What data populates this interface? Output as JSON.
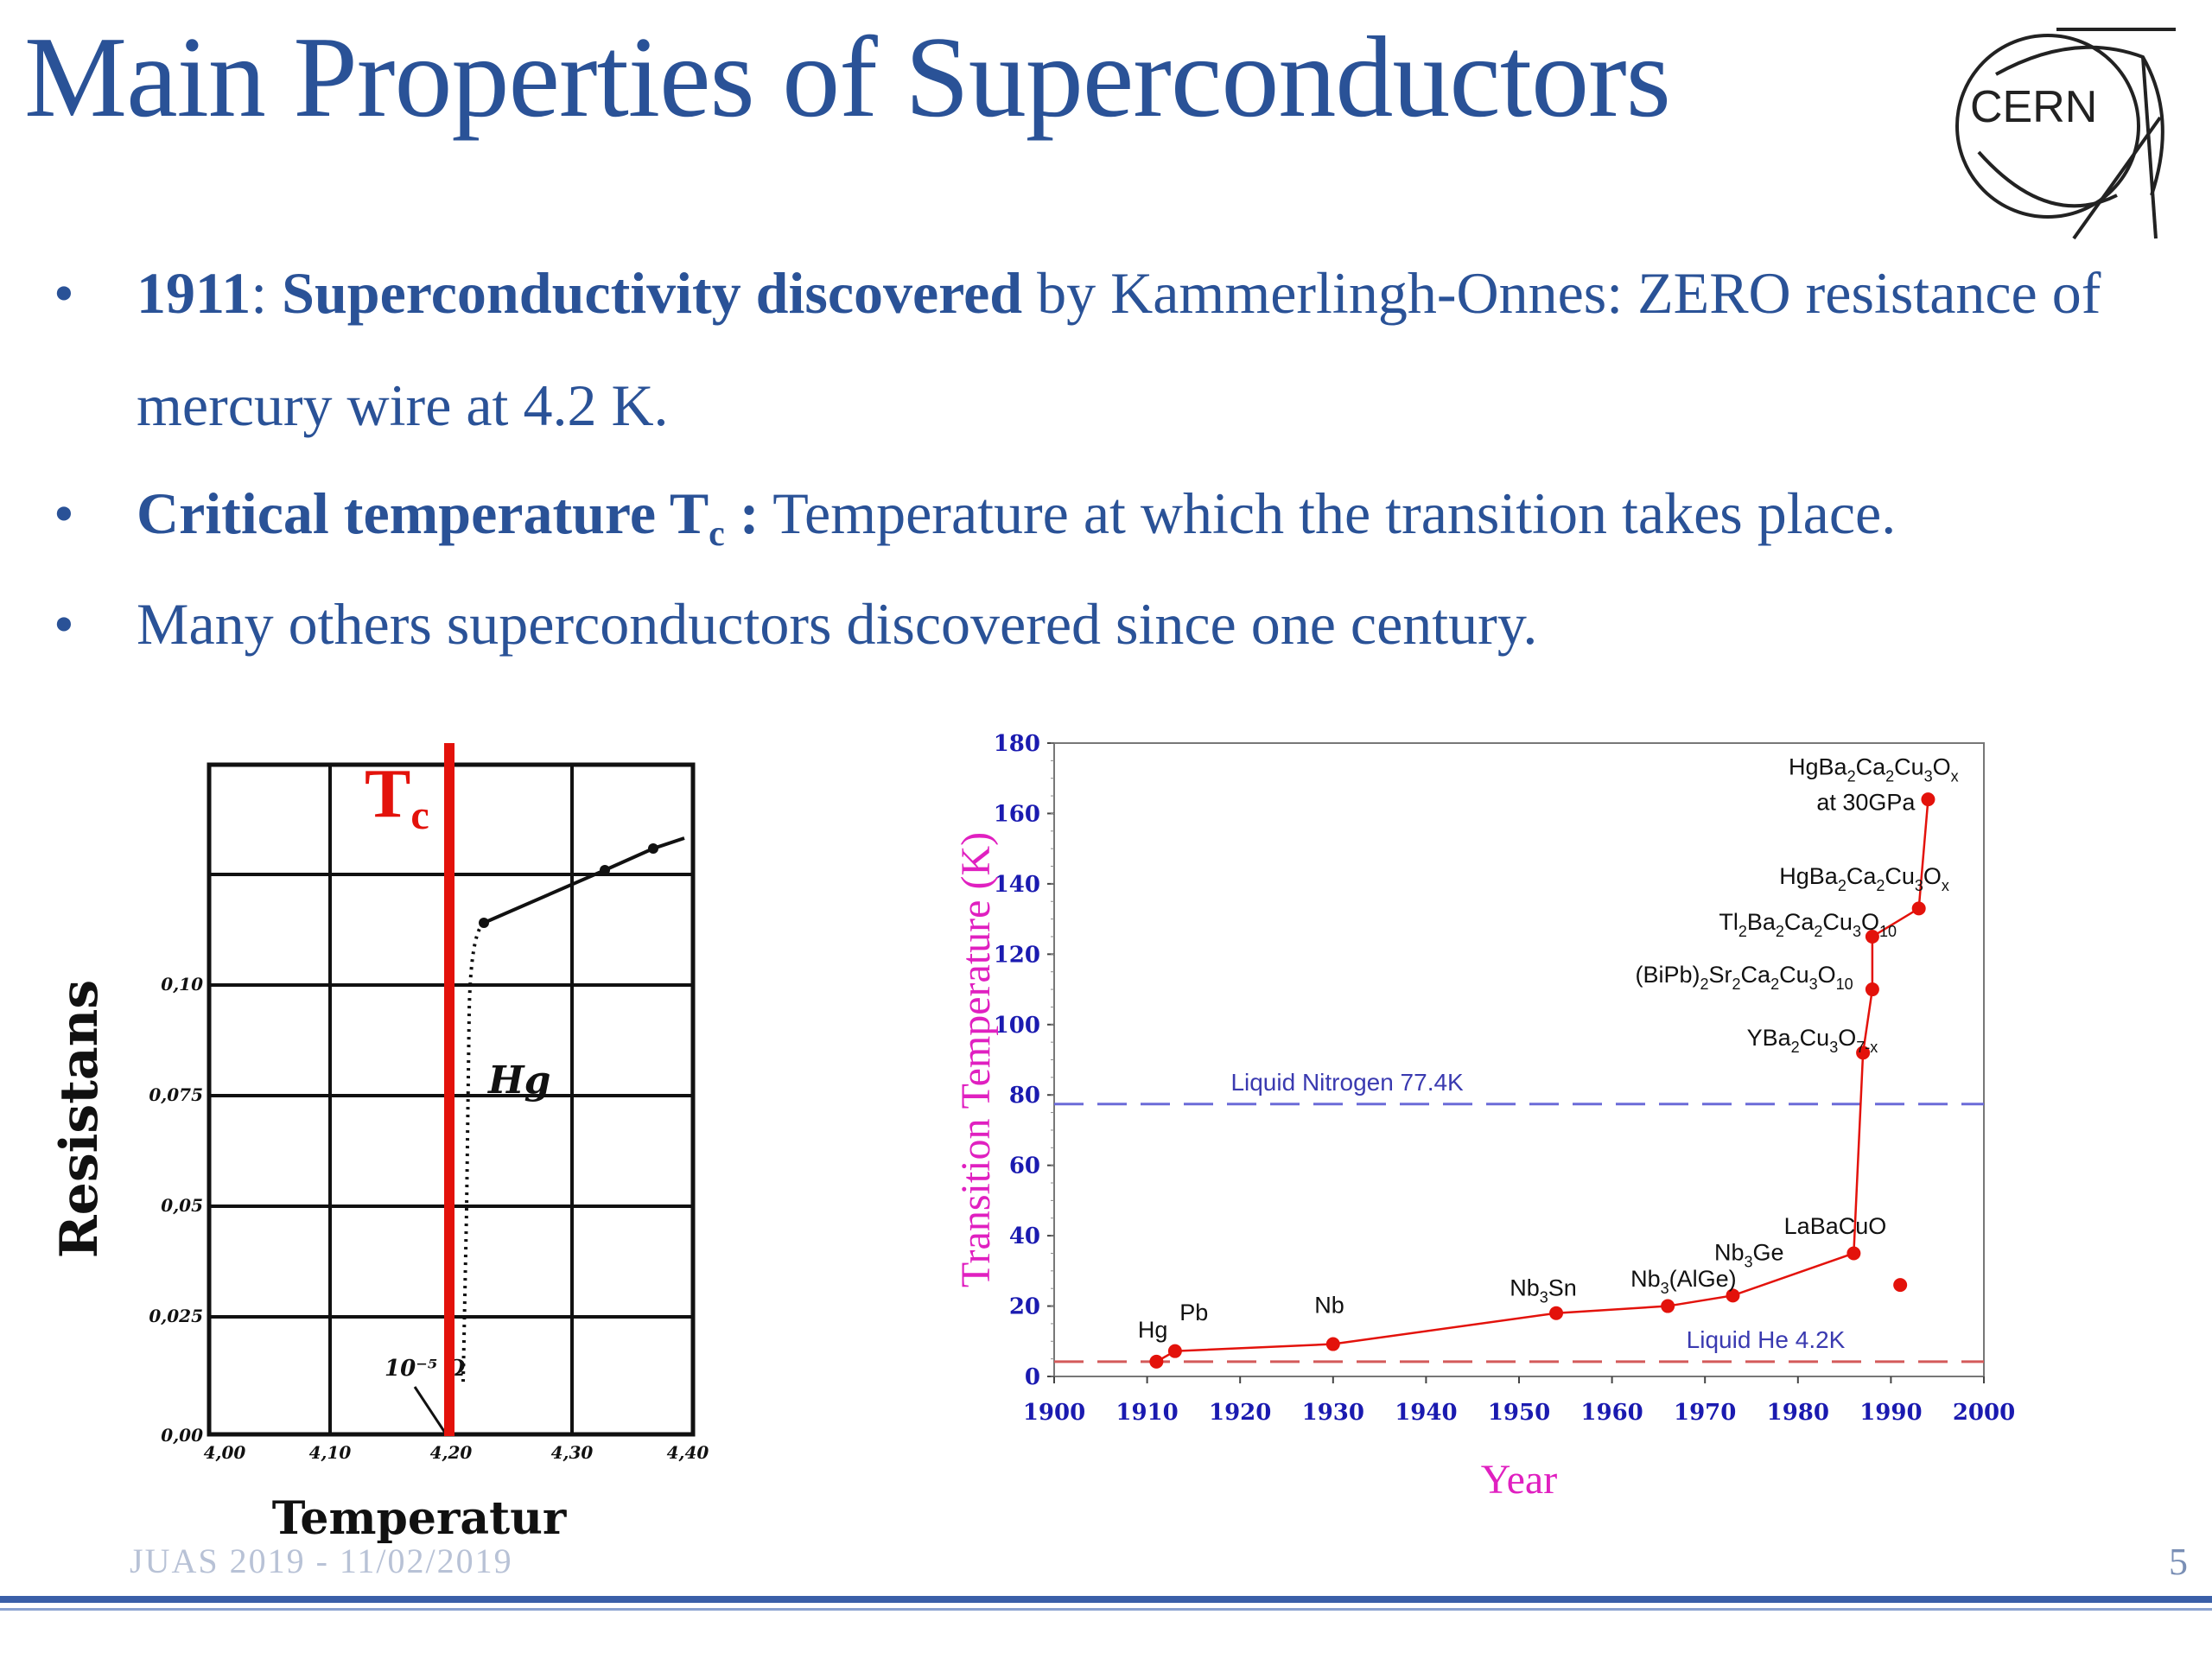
{
  "slide": {
    "title": "Main Properties of Superconductors",
    "logo_text": "CERN",
    "page_number": "5",
    "footer_text": "JUAS 2019 - 11/02/2019"
  },
  "bullets": [
    {
      "year": "1911",
      "sep": ": ",
      "bold": "Superconductivity discovered",
      "rest": " by Kammerlingh-Onnes: ZERO resistance of",
      "line2": "mercury wire at 4.2 K."
    },
    {
      "bold": "Critical temperature T",
      "bold_sub": "c",
      "bold_after": " :",
      "rest": " Temperature at which the transition takes place."
    },
    {
      "text": "Many others superconductors discovered since one century."
    }
  ],
  "bullet_char": "•",
  "left_figure": {
    "ylabel": "Resistans",
    "xlabel": "Temperatur",
    "tc_label": "T",
    "tc_sub": "c",
    "y_ticks": [
      "0,10",
      "0,075",
      "0,05",
      "0,025",
      "0,00"
    ],
    "x_ticks": [
      "4,00",
      "4,10",
      "4,20",
      "4,30",
      "4,40"
    ],
    "annotation_hg": "Hg",
    "annotation_small": "10⁻⁵ Ω",
    "colors": {
      "tc_line": "#e3120b",
      "tc_text": "#e3120b"
    }
  },
  "chart_data": {
    "type": "scatter",
    "xlabel": "Year",
    "ylabel": "Transition Temperature (K)",
    "xlim": [
      1900,
      2000
    ],
    "ylim": [
      0,
      180
    ],
    "x_ticks": [
      "1900",
      "1910",
      "1920",
      "1930",
      "1940",
      "1950",
      "1960",
      "1970",
      "1980",
      "1990",
      "2000"
    ],
    "y_ticks": [
      "0",
      "20",
      "40",
      "60",
      "80",
      "100",
      "120",
      "140",
      "160",
      "180"
    ],
    "series": [
      {
        "points": [
          {
            "x": 1911,
            "y": 4.2
          },
          {
            "x": 1913,
            "y": 7.2
          },
          {
            "x": 1930,
            "y": 9.2
          },
          {
            "x": 1954,
            "y": 18
          },
          {
            "x": 1966,
            "y": 20
          },
          {
            "x": 1973,
            "y": 23
          },
          {
            "x": 1986,
            "y": 35
          },
          {
            "x": 1987,
            "y": 92
          },
          {
            "x": 1988,
            "y": 110
          },
          {
            "x": 1988,
            "y": 125
          },
          {
            "x": 1993,
            "y": 133
          },
          {
            "x": 1994,
            "y": 164
          }
        ]
      }
    ],
    "extra_points": [
      {
        "x": 1991,
        "y": 26
      }
    ],
    "reference_lines": [
      {
        "label": "Liquid Nitrogen 77.4K",
        "y": 77.4,
        "color": "#6b6bd8"
      },
      {
        "label": "Liquid He 4.2K",
        "y": 4.2,
        "color": "#d45a5a"
      }
    ],
    "point_labels": [
      {
        "text": "Hg",
        "x": 1909,
        "y": 11
      },
      {
        "text": "Pb",
        "x": 1913.5,
        "y": 16
      },
      {
        "text": "Nb",
        "x": 1928,
        "y": 18
      },
      {
        "text": "Nb3Sn",
        "x": 1949,
        "y": 23
      },
      {
        "text": "Nb3(AlGe)",
        "x": 1962,
        "y": 25.5
      },
      {
        "text": "Nb3Ge",
        "x": 1971,
        "y": 33
      },
      {
        "text": "LaBaCuO",
        "x": 1978.5,
        "y": 40.5
      },
      {
        "text": "YBa2Cu3O7-x",
        "x": 1974.5,
        "y": 94
      },
      {
        "text": "(BiPb)2Sr2Ca2Cu3O10",
        "x": 1962.5,
        "y": 112
      },
      {
        "text": "Tl2Ba2Ca2Cu3O10",
        "x": 1971.5,
        "y": 127
      },
      {
        "text": "HgBa2Ca2Cu3Ox",
        "x": 1978,
        "y": 140
      },
      {
        "text": "HgBa2Ca2Cu3Ox",
        "x": 1979,
        "y": 171
      },
      {
        "text": "at 30GPa",
        "x": 1982,
        "y": 161
      }
    ],
    "colors": {
      "points": "#e3120b",
      "line": "#e3120b",
      "axis_title": "#e020c0",
      "ticks": "#1a1ab0",
      "label_text": "#111111"
    }
  }
}
